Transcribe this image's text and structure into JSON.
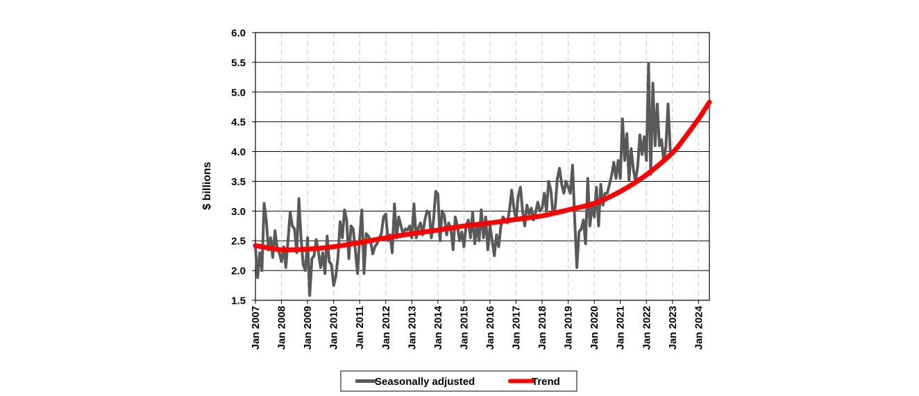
{
  "chart_data": {
    "type": "line",
    "title": "",
    "xlabel": "",
    "ylabel": "$ billions",
    "ylim": [
      1.5,
      6.0
    ],
    "yticks": [
      "1.5",
      "2.0",
      "2.5",
      "3.0",
      "3.5",
      "4.0",
      "4.5",
      "5.0",
      "5.5",
      "6.0"
    ],
    "xrange": [
      "2007-01",
      "2024-06"
    ],
    "xtick_labels": [
      "Jan 2007",
      "Jan 2008",
      "Jan 2009",
      "Jan 2010",
      "Jan 2011",
      "Jan 2012",
      "Jan 2013",
      "Jan 2014",
      "Jan 2015",
      "Jan 2016",
      "Jan 2017",
      "Jan 2018",
      "Jan 2019",
      "Jan 2020",
      "Jan 2021",
      "Jan 2022",
      "Jan 2023",
      "Jan 2024"
    ],
    "grid": {
      "horizontal": "solid",
      "vertical": "dashed"
    },
    "legend": {
      "placement": "bottom-center"
    },
    "series": [
      {
        "name": "Seasonally adjusted",
        "color": "#595959",
        "points": [
          [
            "2007-01",
            2.4
          ],
          [
            "2007-02",
            1.88
          ],
          [
            "2007-03",
            2.3
          ],
          [
            "2007-04",
            2.0
          ],
          [
            "2007-05",
            3.13
          ],
          [
            "2007-06",
            2.85
          ],
          [
            "2007-07",
            2.35
          ],
          [
            "2007-08",
            2.55
          ],
          [
            "2007-09",
            2.22
          ],
          [
            "2007-10",
            2.67
          ],
          [
            "2007-11",
            2.38
          ],
          [
            "2007-12",
            2.3
          ],
          [
            "2008-01",
            2.15
          ],
          [
            "2008-02",
            2.4
          ],
          [
            "2008-03",
            2.05
          ],
          [
            "2008-04",
            2.5
          ],
          [
            "2008-05",
            2.98
          ],
          [
            "2008-06",
            2.75
          ],
          [
            "2008-07",
            2.7
          ],
          [
            "2008-08",
            2.3
          ],
          [
            "2008-09",
            3.21
          ],
          [
            "2008-10",
            2.55
          ],
          [
            "2008-11",
            2.1
          ],
          [
            "2008-12",
            2.0
          ],
          [
            "2009-01",
            2.55
          ],
          [
            "2009-02",
            1.58
          ],
          [
            "2009-03",
            2.2
          ],
          [
            "2009-04",
            2.25
          ],
          [
            "2009-05",
            2.52
          ],
          [
            "2009-06",
            2.32
          ],
          [
            "2009-07",
            2.05
          ],
          [
            "2009-08",
            2.3
          ],
          [
            "2009-09",
            1.95
          ],
          [
            "2009-10",
            2.58
          ],
          [
            "2009-11",
            2.15
          ],
          [
            "2009-12",
            2.1
          ],
          [
            "2010-01",
            1.75
          ],
          [
            "2010-02",
            1.9
          ],
          [
            "2010-03",
            2.22
          ],
          [
            "2010-04",
            2.82
          ],
          [
            "2010-05",
            2.55
          ],
          [
            "2010-06",
            3.02
          ],
          [
            "2010-07",
            2.85
          ],
          [
            "2010-08",
            2.2
          ],
          [
            "2010-09",
            2.75
          ],
          [
            "2010-10",
            2.7
          ],
          [
            "2010-11",
            2.35
          ],
          [
            "2010-12",
            1.95
          ],
          [
            "2011-01",
            2.55
          ],
          [
            "2011-02",
            3.02
          ],
          [
            "2011-03",
            1.95
          ],
          [
            "2011-04",
            2.62
          ],
          [
            "2011-05",
            2.58
          ],
          [
            "2011-06",
            2.5
          ],
          [
            "2011-07",
            2.28
          ],
          [
            "2011-08",
            2.4
          ],
          [
            "2011-09",
            2.45
          ],
          [
            "2011-10",
            2.55
          ],
          [
            "2011-11",
            2.62
          ],
          [
            "2011-12",
            2.9
          ],
          [
            "2012-01",
            2.95
          ],
          [
            "2012-02",
            2.5
          ],
          [
            "2012-03",
            2.6
          ],
          [
            "2012-04",
            2.3
          ],
          [
            "2012-05",
            3.12
          ],
          [
            "2012-06",
            2.55
          ],
          [
            "2012-07",
            2.9
          ],
          [
            "2012-08",
            2.75
          ],
          [
            "2012-09",
            2.6
          ],
          [
            "2012-10",
            2.7
          ],
          [
            "2012-11",
            2.68
          ],
          [
            "2012-12",
            2.75
          ],
          [
            "2013-01",
            2.55
          ],
          [
            "2013-02",
            3.12
          ],
          [
            "2013-03",
            2.55
          ],
          [
            "2013-04",
            2.72
          ],
          [
            "2013-05",
            2.8
          ],
          [
            "2013-06",
            2.6
          ],
          [
            "2013-07",
            2.85
          ],
          [
            "2013-08",
            3.0
          ],
          [
            "2013-09",
            2.98
          ],
          [
            "2013-10",
            2.55
          ],
          [
            "2013-11",
            2.85
          ],
          [
            "2013-12",
            3.33
          ],
          [
            "2014-01",
            3.28
          ],
          [
            "2014-02",
            2.5
          ],
          [
            "2014-03",
            3.0
          ],
          [
            "2014-04",
            2.92
          ],
          [
            "2014-05",
            2.6
          ],
          [
            "2014-06",
            2.8
          ],
          [
            "2014-07",
            2.7
          ],
          [
            "2014-08",
            2.35
          ],
          [
            "2014-09",
            2.9
          ],
          [
            "2014-10",
            2.75
          ],
          [
            "2014-11",
            2.5
          ],
          [
            "2014-12",
            2.65
          ],
          [
            "2015-01",
            2.4
          ],
          [
            "2015-02",
            2.75
          ],
          [
            "2015-03",
            2.85
          ],
          [
            "2015-04",
            2.55
          ],
          [
            "2015-05",
            2.98
          ],
          [
            "2015-06",
            2.45
          ],
          [
            "2015-07",
            2.75
          ],
          [
            "2015-08",
            2.5
          ],
          [
            "2015-09",
            3.02
          ],
          [
            "2015-10",
            2.55
          ],
          [
            "2015-11",
            2.9
          ],
          [
            "2015-12",
            2.35
          ],
          [
            "2016-01",
            2.75
          ],
          [
            "2016-02",
            2.5
          ],
          [
            "2016-03",
            2.25
          ],
          [
            "2016-04",
            2.6
          ],
          [
            "2016-05",
            2.4
          ],
          [
            "2016-06",
            2.75
          ],
          [
            "2016-07",
            2.9
          ],
          [
            "2016-08",
            2.85
          ],
          [
            "2016-09",
            2.8
          ],
          [
            "2016-10",
            3.02
          ],
          [
            "2016-11",
            3.35
          ],
          [
            "2016-12",
            3.05
          ],
          [
            "2017-01",
            2.85
          ],
          [
            "2017-02",
            3.25
          ],
          [
            "2017-03",
            3.4
          ],
          [
            "2017-04",
            3.0
          ],
          [
            "2017-05",
            2.75
          ],
          [
            "2017-06",
            3.1
          ],
          [
            "2017-07",
            2.95
          ],
          [
            "2017-08",
            3.05
          ],
          [
            "2017-09",
            2.85
          ],
          [
            "2017-10",
            2.98
          ],
          [
            "2017-11",
            3.15
          ],
          [
            "2017-12",
            3.0
          ],
          [
            "2018-01",
            3.05
          ],
          [
            "2018-02",
            3.3
          ],
          [
            "2018-03",
            3.0
          ],
          [
            "2018-04",
            3.5
          ],
          [
            "2018-05",
            3.35
          ],
          [
            "2018-06",
            2.95
          ],
          [
            "2018-07",
            3.05
          ],
          [
            "2018-08",
            3.55
          ],
          [
            "2018-09",
            3.72
          ],
          [
            "2018-10",
            3.45
          ],
          [
            "2018-11",
            3.3
          ],
          [
            "2018-12",
            3.5
          ],
          [
            "2019-01",
            3.4
          ],
          [
            "2019-02",
            3.3
          ],
          [
            "2019-03",
            3.77
          ],
          [
            "2019-04",
            2.85
          ],
          [
            "2019-05",
            2.05
          ],
          [
            "2019-06",
            2.65
          ],
          [
            "2019-07",
            2.7
          ],
          [
            "2019-08",
            2.85
          ],
          [
            "2019-09",
            2.45
          ],
          [
            "2019-10",
            3.55
          ],
          [
            "2019-11",
            2.75
          ],
          [
            "2019-12",
            3.1
          ],
          [
            "2020-01",
            2.9
          ],
          [
            "2020-02",
            3.4
          ],
          [
            "2020-03",
            2.75
          ],
          [
            "2020-04",
            3.45
          ],
          [
            "2020-05",
            3.1
          ],
          [
            "2020-06",
            3.3
          ],
          [
            "2020-07",
            3.3
          ],
          [
            "2020-08",
            3.45
          ],
          [
            "2020-09",
            3.6
          ],
          [
            "2020-10",
            3.82
          ],
          [
            "2020-11",
            3.55
          ],
          [
            "2020-12",
            3.85
          ],
          [
            "2021-01",
            3.55
          ],
          [
            "2021-02",
            4.55
          ],
          [
            "2021-03",
            3.85
          ],
          [
            "2021-04",
            4.3
          ],
          [
            "2021-05",
            3.52
          ],
          [
            "2021-06",
            4.05
          ],
          [
            "2021-07",
            3.7
          ],
          [
            "2021-08",
            3.5
          ],
          [
            "2021-09",
            3.75
          ],
          [
            "2021-10",
            4.28
          ],
          [
            "2021-11",
            3.95
          ],
          [
            "2021-12",
            4.25
          ],
          [
            "2022-01",
            3.85
          ],
          [
            "2022-02",
            5.48
          ],
          [
            "2022-03",
            3.62
          ],
          [
            "2022-04",
            5.15
          ],
          [
            "2022-05",
            4.1
          ],
          [
            "2022-06",
            4.8
          ],
          [
            "2022-07",
            4.1
          ],
          [
            "2022-08",
            4.2
          ],
          [
            "2022-09",
            3.82
          ],
          [
            "2022-10",
            4.1
          ],
          [
            "2022-11",
            4.8
          ],
          [
            "2022-12",
            4.0
          ]
        ]
      },
      {
        "name": "Trend",
        "color": "#ff0000",
        "points": [
          [
            "2007-01",
            2.42
          ],
          [
            "2008-01",
            2.35
          ],
          [
            "2009-01",
            2.36
          ],
          [
            "2010-01",
            2.4
          ],
          [
            "2011-01",
            2.47
          ],
          [
            "2012-01",
            2.55
          ],
          [
            "2013-01",
            2.62
          ],
          [
            "2014-01",
            2.68
          ],
          [
            "2015-01",
            2.75
          ],
          [
            "2016-01",
            2.8
          ],
          [
            "2017-01",
            2.86
          ],
          [
            "2018-01",
            2.92
          ],
          [
            "2019-01",
            3.02
          ],
          [
            "2020-01",
            3.13
          ],
          [
            "2021-01",
            3.33
          ],
          [
            "2022-01",
            3.61
          ],
          [
            "2023-01",
            3.98
          ],
          [
            "2023-07",
            4.25
          ],
          [
            "2024-01",
            4.55
          ],
          [
            "2024-06",
            4.83
          ]
        ]
      }
    ]
  }
}
